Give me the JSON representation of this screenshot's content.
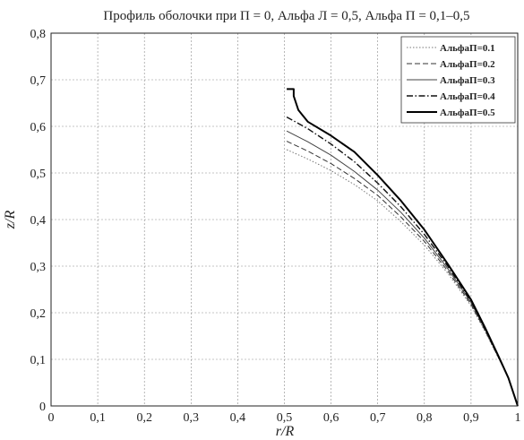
{
  "chart_data": {
    "type": "line",
    "title": "Профиль оболочки при П = 0, Альфа Л = 0,5, Альфа П = 0,1–0,5",
    "xlabel": "r/R",
    "ylabel": "z/R",
    "xlim": [
      0,
      1
    ],
    "ylim": [
      0,
      0.8
    ],
    "grid": true,
    "legend_position": "top-right",
    "x_ticks": [
      "0",
      "0,1",
      "0,2",
      "0,3",
      "0,4",
      "0,5",
      "0,6",
      "0,7",
      "0,8",
      "0,9",
      "1"
    ],
    "y_ticks": [
      "0",
      "0,1",
      "0,2",
      "0,3",
      "0,4",
      "0,5",
      "0,6",
      "0,7",
      "0,8"
    ],
    "series": [
      {
        "name": "АльфаП=0.1",
        "dash": "1.5 2",
        "width": 1,
        "color": "#777777",
        "x": [
          0.505,
          0.55,
          0.6,
          0.65,
          0.7,
          0.75,
          0.8,
          0.85,
          0.9,
          0.93,
          0.96,
          0.98,
          1.0
        ],
        "y": [
          0.55,
          0.53,
          0.505,
          0.475,
          0.44,
          0.395,
          0.345,
          0.285,
          0.215,
          0.16,
          0.1,
          0.06,
          0.0
        ]
      },
      {
        "name": "АльфаП=0.2",
        "dash": "6 3",
        "width": 1,
        "color": "#333333",
        "x": [
          0.505,
          0.55,
          0.6,
          0.65,
          0.7,
          0.75,
          0.8,
          0.85,
          0.9,
          0.93,
          0.96,
          0.98,
          1.0
        ],
        "y": [
          0.568,
          0.547,
          0.52,
          0.488,
          0.452,
          0.405,
          0.353,
          0.29,
          0.218,
          0.162,
          0.101,
          0.06,
          0.0
        ]
      },
      {
        "name": "АльфаП=0.3",
        "dash": "",
        "width": 1,
        "color": "#444444",
        "x": [
          0.505,
          0.55,
          0.6,
          0.65,
          0.7,
          0.75,
          0.8,
          0.85,
          0.9,
          0.93,
          0.96,
          0.98,
          1.0
        ],
        "y": [
          0.59,
          0.567,
          0.538,
          0.503,
          0.463,
          0.415,
          0.36,
          0.295,
          0.222,
          0.164,
          0.102,
          0.06,
          0.0
        ]
      },
      {
        "name": "АльфаП=0.4",
        "dash": "7 2.5 1.5 2.5",
        "width": 1.4,
        "color": "#111111",
        "x": [
          0.505,
          0.55,
          0.6,
          0.65,
          0.7,
          0.75,
          0.8,
          0.85,
          0.9,
          0.93,
          0.96,
          0.98,
          1.0
        ],
        "y": [
          0.62,
          0.595,
          0.562,
          0.524,
          0.478,
          0.427,
          0.368,
          0.3,
          0.225,
          0.166,
          0.103,
          0.06,
          0.0
        ]
      },
      {
        "name": "АльфаП=0.5",
        "dash": "",
        "width": 2,
        "color": "#000000",
        "x": [
          0.505,
          0.52,
          0.52,
          0.53,
          0.55,
          0.6,
          0.65,
          0.7,
          0.75,
          0.8,
          0.85,
          0.9,
          0.93,
          0.96,
          0.98,
          1.0
        ],
        "y": [
          0.68,
          0.68,
          0.665,
          0.635,
          0.61,
          0.58,
          0.545,
          0.495,
          0.44,
          0.378,
          0.305,
          0.228,
          0.168,
          0.104,
          0.06,
          0.0
        ]
      }
    ]
  }
}
